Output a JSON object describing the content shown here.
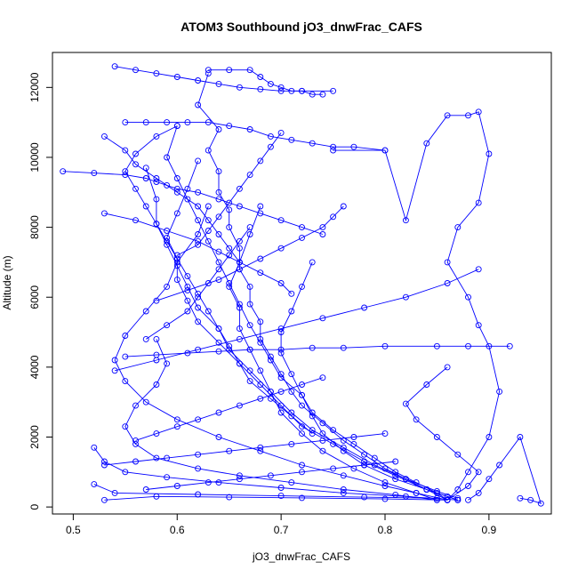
{
  "chart_data": {
    "type": "scatter",
    "title": "ATOM3 Southbound jO3_dnwFrac_CAFS",
    "xlabel": "jO3_dnwFrac_CAFS",
    "ylabel": "Altitude (m)",
    "xlim": [
      0.48,
      0.96
    ],
    "ylim": [
      -200,
      13000
    ],
    "x_ticks": [
      0.5,
      0.6,
      0.7,
      0.8,
      0.9
    ],
    "x_tick_labels": [
      "0.5",
      "0.6",
      "0.7",
      "0.8",
      "0.9"
    ],
    "y_ticks": [
      0,
      2000,
      4000,
      6000,
      8000,
      10000,
      12000
    ],
    "y_tick_labels": [
      "0",
      "2000",
      "4000",
      "6000",
      "8000",
      "10000",
      "12000"
    ],
    "grid": false,
    "legend": "none",
    "series_color": "#0000ff",
    "marker": "open-circle",
    "connected": true,
    "series": [
      {
        "x": [
          0.87,
          0.86,
          0.84,
          0.82,
          0.8,
          0.78,
          0.76,
          0.74,
          0.72,
          0.71,
          0.7,
          0.69,
          0.68,
          0.68,
          0.67,
          0.67,
          0.66,
          0.66,
          0.65,
          0.65,
          0.64,
          0.64,
          0.63,
          0.64,
          0.62,
          0.63
        ],
        "y": [
          200,
          300,
          500,
          800,
          1100,
          1500,
          1900,
          2400,
          2900,
          3300,
          3800,
          4300,
          4800,
          5300,
          5800,
          6300,
          6800,
          7400,
          8000,
          8500,
          9000,
          9600,
          10200,
          10800,
          11500,
          12400
        ]
      },
      {
        "x": [
          0.86,
          0.85,
          0.83,
          0.81,
          0.79,
          0.77,
          0.75,
          0.73,
          0.72,
          0.7,
          0.69,
          0.68,
          0.67,
          0.66,
          0.65,
          0.64,
          0.63,
          0.62,
          0.61,
          0.6,
          0.59,
          0.6
        ],
        "y": [
          200,
          400,
          700,
          1000,
          1400,
          1800,
          2200,
          2700,
          3200,
          3700,
          4200,
          4700,
          5200,
          5800,
          6400,
          7000,
          7600,
          8200,
          8800,
          9400,
          10000,
          10900
        ]
      },
      {
        "x": [
          0.87,
          0.85,
          0.82,
          0.79,
          0.76,
          0.73,
          0.71,
          0.69,
          0.67,
          0.65,
          0.64,
          0.62,
          0.61,
          0.6,
          0.59,
          0.58,
          0.58,
          0.57
        ],
        "y": [
          250,
          450,
          800,
          1200,
          1700,
          2200,
          2700,
          3300,
          3900,
          4500,
          5100,
          5700,
          6300,
          6900,
          7500,
          8100,
          8800,
          9700
        ]
      },
      {
        "x": [
          0.86,
          0.84,
          0.81,
          0.78,
          0.75,
          0.72,
          0.7,
          0.68,
          0.66,
          0.64,
          0.62,
          0.61,
          0.6,
          0.6,
          0.59,
          0.6,
          0.61,
          0.62
        ],
        "y": [
          200,
          500,
          900,
          1300,
          1800,
          2300,
          2900,
          3500,
          4100,
          4700,
          5300,
          5900,
          6500,
          7100,
          7700,
          8400,
          9100,
          9900
        ]
      },
      {
        "x": [
          0.85,
          0.83,
          0.8,
          0.77,
          0.74,
          0.72,
          0.7,
          0.69,
          0.68,
          0.67,
          0.66,
          0.66,
          0.65,
          0.66,
          0.67,
          0.68
        ],
        "y": [
          200,
          400,
          700,
          1100,
          1600,
          2100,
          2700,
          3300,
          3900,
          4500,
          5100,
          5700,
          6300,
          7000,
          7800,
          8600
        ]
      },
      {
        "x": [
          0.87,
          0.84,
          0.81,
          0.78,
          0.76,
          0.74,
          0.73,
          0.72,
          0.71,
          0.7,
          0.7,
          0.71,
          0.72,
          0.73
        ],
        "y": [
          200,
          500,
          800,
          1200,
          1600,
          2100,
          2600,
          3200,
          3800,
          4400,
          5000,
          5600,
          6300,
          7000
        ]
      },
      {
        "x": [
          0.86,
          0.83,
          0.8,
          0.76,
          0.72,
          0.68,
          0.64,
          0.6,
          0.57,
          0.55,
          0.54,
          0.55,
          0.57,
          0.59,
          0.6,
          0.62,
          0.63
        ],
        "y": [
          200,
          400,
          600,
          900,
          1200,
          1600,
          2000,
          2500,
          3000,
          3600,
          4200,
          4900,
          5600,
          6300,
          7000,
          7800,
          8600
        ]
      },
      {
        "x": [
          0.85,
          0.81,
          0.76,
          0.71,
          0.66,
          0.62,
          0.58,
          0.56,
          0.55,
          0.56,
          0.58,
          0.59,
          0.58
        ],
        "y": [
          200,
          350,
          500,
          700,
          900,
          1100,
          1400,
          1800,
          2300,
          2900,
          3500,
          4100,
          4800
        ]
      },
      {
        "x": [
          0.87,
          0.82,
          0.76,
          0.7,
          0.64,
          0.59,
          0.55,
          0.53,
          0.52
        ],
        "y": [
          200,
          300,
          400,
          550,
          700,
          850,
          1000,
          1300,
          1700
        ]
      },
      {
        "x": [
          0.86,
          0.8,
          0.72,
          0.65,
          0.58,
          0.53
        ],
        "y": [
          200,
          230,
          260,
          280,
          300,
          200
        ]
      },
      {
        "x": [
          0.85,
          0.78,
          0.7,
          0.62,
          0.54,
          0.52
        ],
        "y": [
          250,
          280,
          320,
          360,
          400,
          650
        ]
      },
      {
        "x": [
          0.88,
          0.89,
          0.9,
          0.91,
          0.93,
          0.95,
          0.94,
          0.93
        ],
        "y": [
          200,
          400,
          800,
          1200,
          2000,
          100,
          200,
          250
        ]
      },
      {
        "x": [
          0.86,
          0.88,
          0.89,
          0.87,
          0.85,
          0.83,
          0.82,
          0.84,
          0.86
        ],
        "y": [
          200,
          600,
          1000,
          1500,
          2000,
          2500,
          2950,
          3500,
          4000
        ]
      },
      {
        "x": [
          0.86,
          0.87,
          0.88,
          0.9,
          0.91,
          0.9,
          0.89,
          0.88,
          0.86,
          0.87,
          0.89,
          0.9,
          0.89,
          0.88,
          0.86,
          0.84,
          0.82,
          0.8,
          0.75
        ],
        "y": [
          200,
          500,
          1000,
          2000,
          3300,
          4600,
          5200,
          6000,
          7000,
          8000,
          8700,
          10100,
          11300,
          11200,
          11200,
          10400,
          8200,
          10200,
          10200
        ]
      },
      {
        "x": [
          0.6,
          0.58,
          0.56,
          0.55,
          0.56,
          0.57,
          0.58,
          0.59,
          0.6,
          0.61,
          0.62,
          0.63,
          0.64,
          0.65,
          0.66,
          0.67,
          0.69,
          0.71,
          0.73
        ],
        "y": [
          10900,
          10600,
          10100,
          9600,
          9100,
          8600,
          8100,
          7600,
          7100,
          6600,
          6100,
          5600,
          5100,
          4600,
          4100,
          3600,
          3100,
          2600,
          2100
        ]
      },
      {
        "x": [
          0.49,
          0.52,
          0.55,
          0.57,
          0.58,
          0.59,
          0.6,
          0.62,
          0.64,
          0.66,
          0.68,
          0.7,
          0.72,
          0.74
        ],
        "y": [
          9600,
          9550,
          9500,
          9400,
          9300,
          9200,
          9100,
          9000,
          8800,
          8600,
          8400,
          8200,
          8000,
          7800
        ]
      },
      {
        "x": [
          0.54,
          0.56,
          0.58,
          0.6,
          0.62,
          0.64,
          0.66,
          0.68,
          0.7,
          0.72,
          0.75
        ],
        "y": [
          12600,
          12500,
          12400,
          12300,
          12200,
          12100,
          12000,
          11950,
          11900,
          11900,
          11900
        ]
      },
      {
        "x": [
          0.63,
          0.65,
          0.67,
          0.68,
          0.69,
          0.7,
          0.71,
          0.72,
          0.73,
          0.74
        ],
        "y": [
          12500,
          12500,
          12500,
          12300,
          12100,
          12000,
          11900,
          11900,
          11800,
          11800
        ]
      },
      {
        "x": [
          0.55,
          0.57,
          0.59,
          0.61,
          0.63,
          0.65,
          0.67,
          0.69,
          0.71,
          0.73,
          0.75,
          0.77,
          0.8
        ],
        "y": [
          11000,
          11000,
          11000,
          11000,
          11000,
          10900,
          10800,
          10600,
          10500,
          10400,
          10300,
          10300,
          10200
        ]
      },
      {
        "x": [
          0.53,
          0.55,
          0.56,
          0.58,
          0.6,
          0.62,
          0.63,
          0.64,
          0.65,
          0.66
        ],
        "y": [
          10600,
          10200,
          9800,
          9400,
          9000,
          8600,
          8200,
          7800,
          7400,
          7000
        ]
      },
      {
        "x": [
          0.53,
          0.56,
          0.59,
          0.62,
          0.64,
          0.66,
          0.68,
          0.7,
          0.71
        ],
        "y": [
          8400,
          8200,
          7900,
          7600,
          7300,
          7000,
          6700,
          6400,
          6100
        ]
      },
      {
        "x": [
          0.55,
          0.58,
          0.61,
          0.64,
          0.67,
          0.7,
          0.73,
          0.76,
          0.8,
          0.85,
          0.88,
          0.92
        ],
        "y": [
          4300,
          4350,
          4400,
          4450,
          4500,
          4500,
          4550,
          4550,
          4600,
          4600,
          4600,
          4600
        ]
      },
      {
        "x": [
          0.54,
          0.58,
          0.62,
          0.66,
          0.7,
          0.74,
          0.78,
          0.82,
          0.86,
          0.89
        ],
        "y": [
          3900,
          4200,
          4500,
          4800,
          5100,
          5400,
          5700,
          6000,
          6400,
          6800
        ]
      },
      {
        "x": [
          0.58,
          0.61,
          0.64,
          0.66,
          0.68,
          0.7,
          0.72,
          0.74,
          0.75,
          0.76
        ],
        "y": [
          5900,
          6200,
          6500,
          6800,
          7100,
          7400,
          7700,
          8000,
          8300,
          8600
        ]
      },
      {
        "x": [
          0.6,
          0.62,
          0.63,
          0.64,
          0.65,
          0.66,
          0.67,
          0.68,
          0.69,
          0.7
        ],
        "y": [
          7200,
          7500,
          7900,
          8300,
          8700,
          9100,
          9500,
          9900,
          10300,
          10700
        ]
      },
      {
        "x": [
          0.57,
          0.59,
          0.61,
          0.62,
          0.63,
          0.64,
          0.65,
          0.66,
          0.67
        ],
        "y": [
          4800,
          5200,
          5600,
          6000,
          6400,
          6800,
          7200,
          7600,
          8000
        ]
      },
      {
        "x": [
          0.56,
          0.58,
          0.6,
          0.62,
          0.64,
          0.66,
          0.68,
          0.7,
          0.72,
          0.74
        ],
        "y": [
          1900,
          2100,
          2300,
          2500,
          2700,
          2900,
          3100,
          3300,
          3500,
          3700
        ]
      },
      {
        "x": [
          0.53,
          0.56,
          0.59,
          0.62,
          0.65,
          0.68,
          0.71,
          0.74,
          0.77,
          0.8
        ],
        "y": [
          1200,
          1300,
          1400,
          1500,
          1600,
          1700,
          1800,
          1900,
          2000,
          2100
        ]
      },
      {
        "x": [
          0.57,
          0.6,
          0.63,
          0.66,
          0.69,
          0.72,
          0.75,
          0.78,
          0.81
        ],
        "y": [
          500,
          600,
          700,
          800,
          900,
          1000,
          1100,
          1200,
          1300
        ]
      }
    ]
  }
}
